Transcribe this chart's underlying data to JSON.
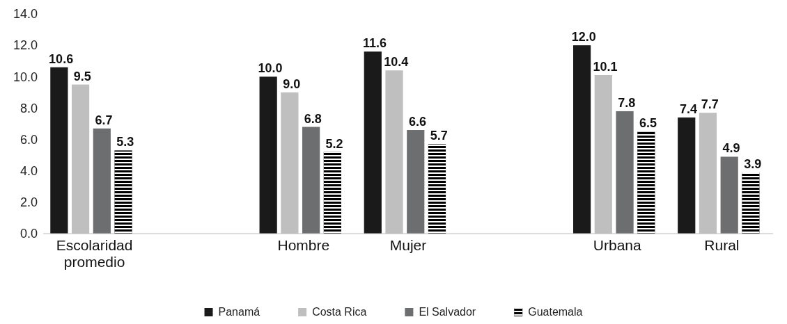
{
  "chart_data": {
    "type": "bar",
    "categories": [
      "Escolaridad promedio",
      null,
      "Hombre",
      "Mujer",
      null,
      "Urbana",
      "Rural"
    ],
    "ylim": [
      0,
      14
    ],
    "yticks": [
      {
        "value": 0,
        "label": "0.0"
      },
      {
        "value": 2,
        "label": "2.0"
      },
      {
        "value": 4,
        "label": "4.0"
      },
      {
        "value": 6,
        "label": "6.0"
      },
      {
        "value": 8,
        "label": "8.0"
      },
      {
        "value": 10,
        "label": "10.0"
      },
      {
        "value": 12,
        "label": "12.0"
      },
      {
        "value": 14,
        "label": "14.0"
      }
    ],
    "grid": false,
    "legend": "bottom",
    "series": [
      {
        "name": "Panamá",
        "color": "#1a1a1a",
        "values": [
          10.6,
          null,
          10.0,
          11.6,
          null,
          12.0,
          7.4
        ],
        "value_labels": [
          "10.6",
          null,
          "10.0",
          "11.6",
          null,
          "12.0",
          "7.4"
        ]
      },
      {
        "name": "Costa Rica",
        "color": "#bfbfbf",
        "values": [
          9.5,
          null,
          9.0,
          10.4,
          null,
          10.1,
          7.7
        ],
        "value_labels": [
          "9.5",
          null,
          "9.0",
          "10.4",
          null,
          "10.1",
          "7.7"
        ]
      },
      {
        "name": "El Salvador",
        "color": "#6d6e70",
        "values": [
          6.7,
          null,
          6.8,
          6.6,
          null,
          7.8,
          4.9
        ],
        "value_labels": [
          "6.7",
          null,
          "6.8",
          "6.6",
          null,
          "7.8",
          "4.9"
        ]
      },
      {
        "name": "Guatemala",
        "color": "#000000",
        "values": [
          5.3,
          null,
          5.2,
          5.7,
          null,
          6.5,
          3.9
        ],
        "value_labels": [
          "5.3",
          null,
          "5.2",
          "5.7",
          null,
          "6.5",
          "3.9"
        ]
      }
    ]
  }
}
